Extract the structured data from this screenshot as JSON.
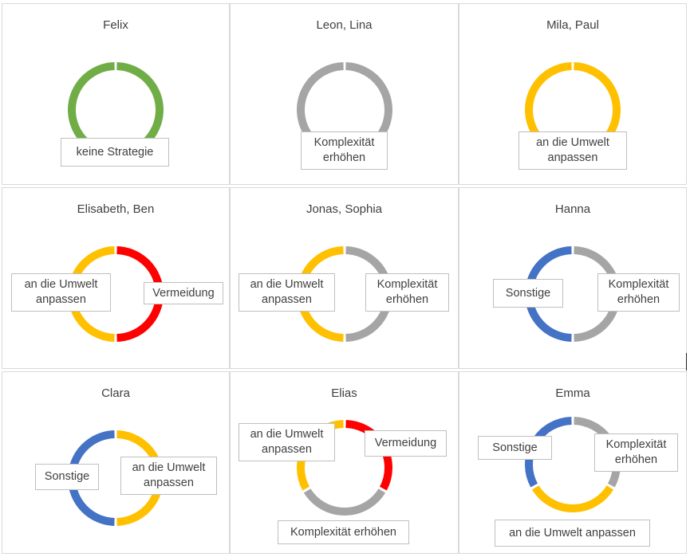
{
  "colors": {
    "keine Strategie": "#70ad47",
    "Komplexität erhöhen": "#a5a5a5",
    "an die Umwelt anpassen": "#ffc000",
    "Vermeidung": "#ff0000",
    "Sonstige": "#4472c4"
  },
  "chart_data": [
    {
      "type": "pie",
      "donut": true,
      "title": "Felix",
      "series": [
        {
          "label": "keine Strategie",
          "value": 1
        }
      ]
    },
    {
      "type": "pie",
      "donut": true,
      "title": "Leon, Lina",
      "series": [
        {
          "label": "Komplexität erhöhen",
          "value": 1
        }
      ]
    },
    {
      "type": "pie",
      "donut": true,
      "title": "Mila, Paul",
      "series": [
        {
          "label": "an die Umwelt anpassen",
          "value": 1
        }
      ]
    },
    {
      "type": "pie",
      "donut": true,
      "title": "Elisabeth, Ben",
      "series": [
        {
          "label": "Vermeidung",
          "value": 1
        },
        {
          "label": "an die Umwelt anpassen",
          "value": 1
        }
      ]
    },
    {
      "type": "pie",
      "donut": true,
      "title": "Jonas, Sophia",
      "series": [
        {
          "label": "Komplexität erhöhen",
          "value": 1
        },
        {
          "label": "an die Umwelt anpassen",
          "value": 1
        }
      ]
    },
    {
      "type": "pie",
      "donut": true,
      "title": "Hanna",
      "series": [
        {
          "label": "Komplexität erhöhen",
          "value": 1
        },
        {
          "label": "Sonstige",
          "value": 1
        }
      ]
    },
    {
      "type": "pie",
      "donut": true,
      "title": "Clara",
      "series": [
        {
          "label": "an die Umwelt anpassen",
          "value": 1
        },
        {
          "label": "Sonstige",
          "value": 1
        }
      ]
    },
    {
      "type": "pie",
      "donut": true,
      "title": "Elias",
      "series": [
        {
          "label": "Vermeidung",
          "value": 1
        },
        {
          "label": "Komplexität erhöhen",
          "value": 1
        },
        {
          "label": "an die Umwelt anpassen",
          "value": 1
        }
      ]
    },
    {
      "type": "pie",
      "donut": true,
      "title": "Emma",
      "series": [
        {
          "label": "Komplexität erhöhen",
          "value": 1
        },
        {
          "label": "an die Umwelt anpassen",
          "value": 1
        },
        {
          "label": "Sonstige",
          "value": 1
        }
      ]
    }
  ]
}
